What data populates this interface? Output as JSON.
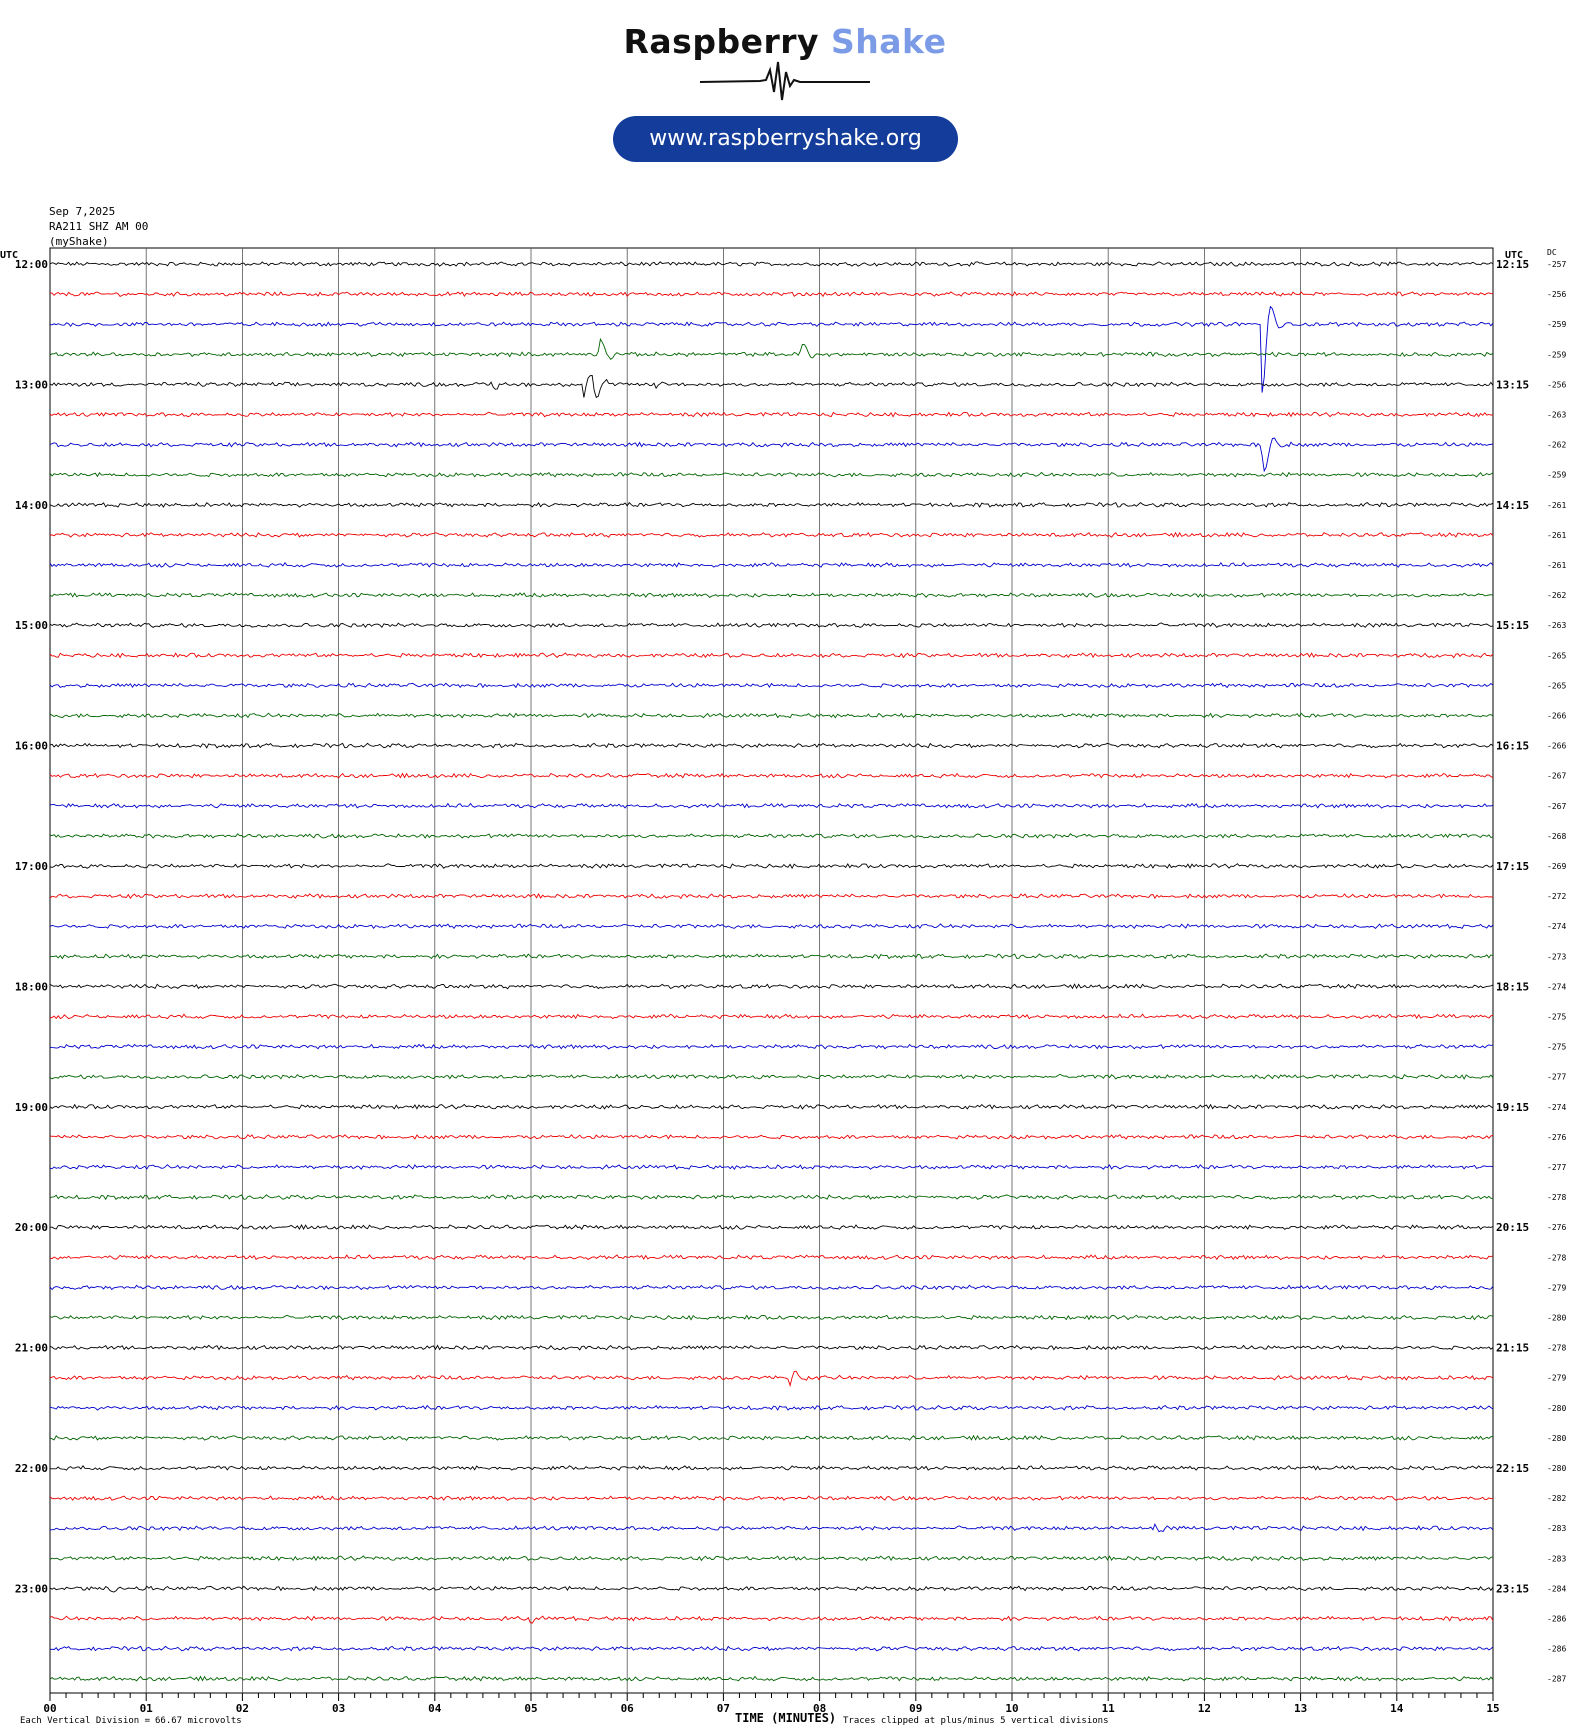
{
  "header": {
    "logo_word1": "Raspberry",
    "logo_word2": "Shake",
    "url": "www.raspberryshake.org",
    "date": "Sep 7,2025",
    "station": "RA211 SHZ AM 00",
    "network": "(myShake)"
  },
  "colors": {
    "brand_dark": "#143c9a",
    "brand_light": "#7b9be6",
    "trace_cycle": [
      "#000000",
      "#ee0000",
      "#0000cc",
      "#006400"
    ]
  },
  "chart_data": {
    "type": "line",
    "subtype": "helicorder",
    "utc_label_left": "UTC",
    "utc_label_right": "UTC",
    "dc_label": "DC",
    "xlabel": "TIME (MINUTES)",
    "xlim": [
      0,
      15
    ],
    "x_ticks": [
      "00",
      "01",
      "02",
      "03",
      "04",
      "05",
      "06",
      "07",
      "08",
      "09",
      "10",
      "11",
      "12",
      "13",
      "14",
      "15"
    ],
    "footer_left": "Each Vertical Division =",
    "footer_value": "66.67 microvolts",
    "footer_right": "Traces clipped at plus/minus 5 vertical divisions",
    "left_hour_labels": [
      "12:00",
      "13:00",
      "14:00",
      "15:00",
      "16:00",
      "17:00",
      "18:00",
      "19:00",
      "20:00",
      "21:00",
      "22:00",
      "23:00"
    ],
    "right_hour_labels": [
      "12:15",
      "13:15",
      "14:15",
      "15:15",
      "16:15",
      "17:15",
      "18:15",
      "19:15",
      "20:15",
      "21:15",
      "22:15",
      "23:15"
    ],
    "dc_values": [
      "-257",
      "-256",
      "-259",
      "-259",
      "-256",
      "-263",
      "-262",
      "-259",
      "-261",
      "-261",
      "-261",
      "-262",
      "-263",
      "-265",
      "-265",
      "-266",
      "-266",
      "-267",
      "-267",
      "-268",
      "-269",
      "-272",
      "-274",
      "-273",
      "-274",
      "-275",
      "-275",
      "-277",
      "-274",
      "-276",
      "-277",
      "-278",
      "-276",
      "-278",
      "-279",
      "-280",
      "-278",
      "-279",
      "-280",
      "-280",
      "-280",
      "-282",
      "-283",
      "-283",
      "-284",
      "-286",
      "-286",
      "-287"
    ],
    "events": [
      {
        "row": 2,
        "minute": 12.6,
        "amp": -5.5
      },
      {
        "row": 3,
        "minute": 5.7,
        "amp": 1.8
      },
      {
        "row": 3,
        "minute": 7.8,
        "amp": 1.3
      },
      {
        "row": 4,
        "minute": 5.55,
        "amp": 1.3
      },
      {
        "row": 4,
        "minute": 5.65,
        "amp": 1.5
      },
      {
        "row": 4,
        "minute": 4.6,
        "amp": 0.5
      },
      {
        "row": 4,
        "minute": 6.3,
        "amp": 0.4
      },
      {
        "row": 6,
        "minute": 12.6,
        "amp": 3.0
      },
      {
        "row": 37,
        "minute": 7.7,
        "amp": 0.9
      },
      {
        "row": 42,
        "minute": 11.5,
        "amp": 0.3
      },
      {
        "row": 44,
        "minute": 0.6,
        "amp": 0.4
      },
      {
        "row": 45,
        "minute": 5.0,
        "amp": 0.3
      }
    ]
  }
}
